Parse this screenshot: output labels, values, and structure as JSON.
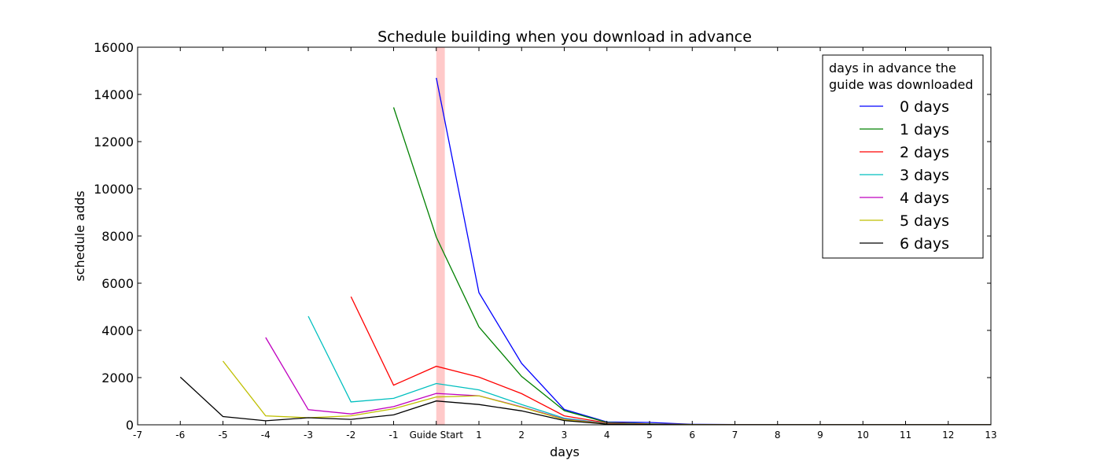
{
  "chart_data": {
    "type": "line",
    "title": "Schedule building when you download in advance",
    "xlabel": "days",
    "ylabel": "schedule adds",
    "xlim": [
      -7,
      13
    ],
    "ylim": [
      0,
      16000
    ],
    "x_ticks": [
      -7,
      -6,
      -5,
      -4,
      -3,
      -2,
      -1,
      0,
      1,
      2,
      3,
      4,
      5,
      6,
      7,
      8,
      9,
      10,
      11,
      12,
      13
    ],
    "x_tick_labels": [
      "-7",
      "-6",
      "-5",
      "-4",
      "-3",
      "-2",
      "-1",
      "Guide Start",
      "1",
      "2",
      "3",
      "4",
      "5",
      "6",
      "7",
      "8",
      "9",
      "10",
      "11",
      "12",
      "13"
    ],
    "y_ticks": [
      0,
      2000,
      4000,
      6000,
      8000,
      10000,
      12000,
      14000,
      16000
    ],
    "y_tick_labels": [
      "0",
      "2000",
      "4000",
      "6000",
      "8000",
      "10000",
      "12000",
      "14000",
      "16000"
    ],
    "grid": false,
    "highlight_band": {
      "x_start": 0,
      "x_end": 0.2,
      "color": "#ffc0c0"
    },
    "legend": {
      "title_lines": [
        "days in advance the",
        "guide was downloaded"
      ],
      "placement": "top-right"
    },
    "series": [
      {
        "name": "0 days",
        "color": "#0000ff",
        "x": [
          0,
          1,
          2,
          3,
          4,
          5,
          6,
          7,
          8,
          9,
          10,
          11,
          12,
          13
        ],
        "y": [
          14700,
          5600,
          2600,
          650,
          120,
          100,
          20,
          10,
          5,
          5,
          5,
          5,
          5,
          5
        ]
      },
      {
        "name": "1 days",
        "color": "#008000",
        "x": [
          -1,
          0,
          1,
          2,
          3,
          4,
          5,
          6,
          7,
          8,
          9,
          10,
          11,
          12,
          13
        ],
        "y": [
          13450,
          7950,
          4150,
          2050,
          600,
          100,
          40,
          10,
          5,
          5,
          5,
          5,
          5,
          5,
          5
        ]
      },
      {
        "name": "2 days",
        "color": "#ff0000",
        "x": [
          -2,
          -1,
          0,
          1,
          2,
          3,
          4,
          5,
          6,
          7,
          8,
          9,
          10,
          11,
          12,
          13
        ],
        "y": [
          5430,
          1680,
          2480,
          2020,
          1320,
          380,
          80,
          30,
          10,
          5,
          5,
          5,
          5,
          5,
          5,
          5
        ]
      },
      {
        "name": "3 days",
        "color": "#00bfbf",
        "x": [
          -3,
          -2,
          -1,
          0,
          1,
          2,
          3,
          4,
          5,
          6,
          7,
          8,
          9,
          10,
          11,
          12,
          13
        ],
        "y": [
          4600,
          970,
          1120,
          1750,
          1480,
          860,
          280,
          60,
          20,
          10,
          5,
          5,
          5,
          5,
          5,
          5,
          5
        ]
      },
      {
        "name": "4 days",
        "color": "#bf00bf",
        "x": [
          -4,
          -3,
          -2,
          -1,
          0,
          1,
          2,
          3,
          4,
          5,
          6,
          7,
          8,
          9,
          10,
          11,
          12,
          13
        ],
        "y": [
          3700,
          640,
          460,
          770,
          1330,
          1230,
          760,
          240,
          50,
          20,
          10,
          5,
          5,
          5,
          5,
          5,
          5,
          5
        ]
      },
      {
        "name": "5 days",
        "color": "#bfbf00",
        "x": [
          -5,
          -4,
          -3,
          -2,
          -1,
          0,
          1,
          2,
          3,
          4,
          5,
          6,
          7,
          8,
          9,
          10,
          11,
          12,
          13
        ],
        "y": [
          2700,
          380,
          300,
          380,
          680,
          1180,
          1230,
          740,
          220,
          40,
          20,
          10,
          5,
          5,
          5,
          5,
          5,
          5,
          5
        ]
      },
      {
        "name": "6 days",
        "color": "#000000",
        "x": [
          -6,
          -5,
          -4,
          -3,
          -2,
          -1,
          0,
          1,
          2,
          3,
          4,
          5,
          6,
          7,
          8,
          9,
          10,
          11,
          12,
          13
        ],
        "y": [
          2020,
          350,
          170,
          300,
          230,
          420,
          1010,
          860,
          590,
          180,
          30,
          10,
          5,
          5,
          5,
          5,
          5,
          5,
          5,
          5
        ]
      }
    ]
  }
}
